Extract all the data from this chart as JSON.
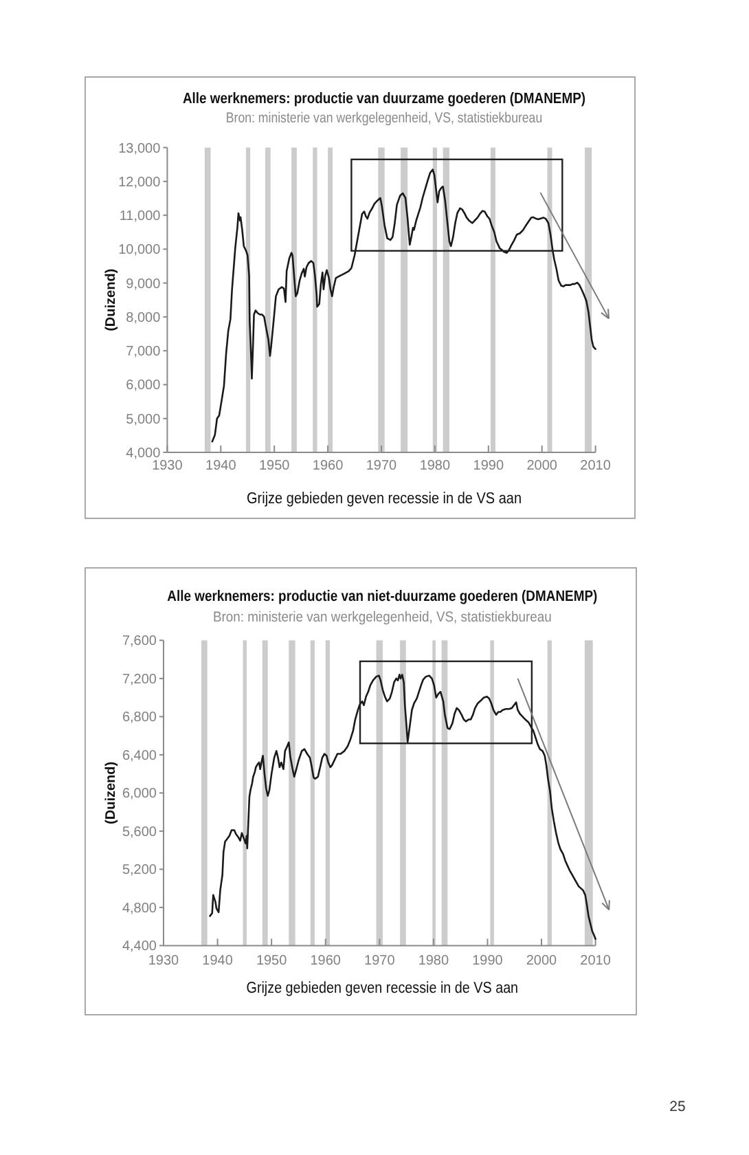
{
  "chart_data": [
    {
      "type": "line",
      "title": "Alle werknemers: productie van duurzame goederen (DMANEMP)",
      "subtitle": "Bron: ministerie van werkgelegenheid, VS, statistiekbureau",
      "xlabel": "Grijze gebieden geven recessie in de VS aan",
      "ylabel": "(Duizend)",
      "xlim": [
        1930,
        2010
      ],
      "xticks": [
        1930,
        1940,
        1950,
        1960,
        1970,
        1980,
        1990,
        2000,
        2010
      ],
      "ylim": [
        4000,
        13000
      ],
      "yticks": [
        {
          "value": 4000,
          "label": "4,000"
        },
        {
          "value": 5000,
          "label": "5,000"
        },
        {
          "value": 6000,
          "label": "6,000"
        },
        {
          "value": 7000,
          "label": "7,000"
        },
        {
          "value": 8000,
          "label": "8,000"
        },
        {
          "value": 9000,
          "label": "9,000"
        },
        {
          "value": 10000,
          "label": "10,000"
        },
        {
          "value": 11000,
          "label": "11,000"
        },
        {
          "value": 12000,
          "label": "12,000"
        },
        {
          "value": 13000,
          "label": "13,000"
        }
      ],
      "bands": [
        {
          "axis": "x",
          "from": 1937.0,
          "to": 1938.1,
          "color": "#cccccc"
        },
        {
          "axis": "x",
          "from": 1944.7,
          "to": 1945.5,
          "color": "#cccccc"
        },
        {
          "axis": "x",
          "from": 1948.3,
          "to": 1949.3,
          "color": "#cccccc"
        },
        {
          "axis": "x",
          "from": 1953.2,
          "to": 1954.2,
          "color": "#cccccc"
        },
        {
          "axis": "x",
          "from": 1957.2,
          "to": 1958.0,
          "color": "#cccccc"
        },
        {
          "axis": "x",
          "from": 1960.0,
          "to": 1960.9,
          "color": "#cccccc"
        },
        {
          "axis": "x",
          "from": 1969.4,
          "to": 1970.6,
          "color": "#cccccc"
        },
        {
          "axis": "x",
          "from": 1973.6,
          "to": 1974.9,
          "color": "#cccccc"
        },
        {
          "axis": "x",
          "from": 1979.6,
          "to": 1980.4,
          "color": "#cccccc"
        },
        {
          "axis": "x",
          "from": 1981.5,
          "to": 1982.7,
          "color": "#cccccc"
        },
        {
          "axis": "x",
          "from": 1990.4,
          "to": 1991.3,
          "color": "#cccccc"
        },
        {
          "axis": "x",
          "from": 2001.0,
          "to": 2001.9,
          "color": "#cccccc"
        },
        {
          "axis": "x",
          "from": 2008.0,
          "to": 2009.3,
          "color": "#cccccc"
        }
      ],
      "x": [
        1938.4,
        1938.9,
        1939.3,
        1939.7,
        1940.2,
        1940.6,
        1941.0,
        1941.4,
        1941.8,
        1942.1,
        1942.5,
        1942.7,
        1943.1,
        1943.3,
        1943.6,
        1943.7,
        1944.0,
        1944.3,
        1944.7,
        1945.0,
        1945.3,
        1945.4,
        1945.6,
        1945.8,
        1946.0,
        1946.2,
        1946.5,
        1946.9,
        1947.3,
        1947.7,
        1948.1,
        1948.4,
        1948.9,
        1949.2,
        1949.4,
        1949.9,
        1950.3,
        1950.8,
        1951.4,
        1951.8,
        1952.1,
        1952.3,
        1952.8,
        1953.2,
        1953.4,
        1953.7,
        1954.0,
        1954.3,
        1954.7,
        1955.1,
        1955.5,
        1955.7,
        1956.0,
        1956.4,
        1956.9,
        1957.3,
        1957.6,
        1957.9,
        1958.0,
        1958.4,
        1958.7,
        1959.0,
        1959.2,
        1959.5,
        1959.8,
        1960.2,
        1960.5,
        1960.8,
        1961.1,
        1961.5,
        1962.2,
        1963.1,
        1963.9,
        1964.4,
        1965.0,
        1965.7,
        1966.4,
        1966.8,
        1967.1,
        1967.4,
        1967.8,
        1968.3,
        1968.7,
        1969.3,
        1969.8,
        1970.1,
        1970.6,
        1971.1,
        1971.7,
        1972.1,
        1972.5,
        1972.9,
        1973.5,
        1974.0,
        1974.5,
        1974.9,
        1975.3,
        1975.6,
        1975.9,
        1976.1,
        1976.5,
        1976.9,
        1977.3,
        1977.7,
        1978.2,
        1978.7,
        1979.1,
        1979.6,
        1979.9,
        1980.2,
        1980.5,
        1980.8,
        1981.2,
        1981.5,
        1981.9,
        1982.3,
        1982.7,
        1983.0,
        1983.4,
        1983.8,
        1984.2,
        1984.7,
        1985.1,
        1985.5,
        1985.9,
        1986.4,
        1987.0,
        1987.4,
        1988.0,
        1988.4,
        1988.9,
        1989.3,
        1989.8,
        1990.2,
        1990.6,
        1991.1,
        1991.5,
        1992.1,
        1992.5,
        1992.9,
        1993.4,
        1993.8,
        1994.2,
        1994.8,
        1995.3,
        1995.9,
        1996.5,
        1997.0,
        1997.6,
        1998.0,
        1998.4,
        1998.9,
        1999.3,
        1999.7,
        2000.3,
        2000.7,
        2001.2,
        2001.6,
        2002.0,
        2002.3,
        2002.7,
        2003.1,
        2003.6,
        2004.0,
        2004.4,
        2004.8,
        2005.3,
        2005.7,
        2006.1,
        2006.6,
        2007.0,
        2007.4,
        2007.8,
        2008.3,
        2008.7,
        2009.0,
        2009.3,
        2009.6,
        2010.0
      ],
      "series": [
        {
          "color": "#1a1a1a",
          "values": [
            4320,
            4510,
            5000,
            5090,
            5570,
            5970,
            6920,
            7590,
            7930,
            8810,
            9620,
            10030,
            10630,
            11060,
            10840,
            10940,
            10570,
            10090,
            9960,
            9820,
            9210,
            7860,
            7120,
            6180,
            7050,
            8070,
            8190,
            8110,
            8070,
            8070,
            8000,
            7730,
            7320,
            6850,
            7120,
            7930,
            8610,
            8810,
            8880,
            8840,
            8440,
            9350,
            9730,
            9890,
            9820,
            9210,
            8610,
            8700,
            9050,
            9280,
            9420,
            9190,
            9460,
            9590,
            9650,
            9590,
            9210,
            8670,
            8300,
            8380,
            8970,
            9310,
            8810,
            9210,
            9380,
            9150,
            8810,
            8610,
            8880,
            9150,
            9210,
            9280,
            9350,
            9440,
            9820,
            10430,
            11040,
            11110,
            10970,
            10900,
            11080,
            11210,
            11340,
            11440,
            11510,
            11270,
            10700,
            10320,
            10270,
            10360,
            10770,
            11310,
            11580,
            11650,
            11510,
            10900,
            10130,
            10360,
            10630,
            10570,
            10840,
            11040,
            11240,
            11510,
            11780,
            12050,
            12250,
            12350,
            12190,
            11780,
            11380,
            11710,
            11810,
            11850,
            11440,
            10840,
            10230,
            10090,
            10360,
            10770,
            11070,
            11210,
            11170,
            11070,
            10940,
            10840,
            10770,
            10840,
            10940,
            11040,
            11130,
            11110,
            10970,
            10900,
            10700,
            10500,
            10230,
            10030,
            9980,
            9920,
            9890,
            9960,
            10090,
            10260,
            10430,
            10470,
            10570,
            10700,
            10840,
            10930,
            10940,
            10900,
            10880,
            10900,
            10930,
            10900,
            10770,
            10430,
            9960,
            9690,
            9420,
            9080,
            8920,
            8900,
            8940,
            8940,
            8940,
            8970,
            8970,
            9010,
            8940,
            8810,
            8670,
            8470,
            8130,
            7730,
            7320,
            7120,
            7050
          ]
        }
      ]
    },
    {
      "type": "line",
      "title": "Alle werknemers: productie van niet-duurzame goederen (DMANEMP)",
      "subtitle": "Bron: ministerie van werkgelegenheid, VS, statistiekbureau",
      "xlabel": "Grijze gebieden geven recessie in de VS aan",
      "ylabel": "(Duizend)",
      "xlim": [
        1930,
        2010
      ],
      "xticks": [
        1930,
        1940,
        1950,
        1960,
        1970,
        1980,
        1990,
        2000,
        2010
      ],
      "ylim": [
        4400,
        7600
      ],
      "yticks": [
        {
          "value": 4400,
          "label": "4,400"
        },
        {
          "value": 4800,
          "label": "4,800"
        },
        {
          "value": 5200,
          "label": "5,200"
        },
        {
          "value": 5600,
          "label": "5,600"
        },
        {
          "value": 6000,
          "label": "6,000"
        },
        {
          "value": 6400,
          "label": "6,400"
        },
        {
          "value": 6800,
          "label": "6,800"
        },
        {
          "value": 7200,
          "label": "7,200"
        },
        {
          "value": 7600,
          "label": "7,600"
        }
      ],
      "bands": [
        {
          "axis": "x",
          "from": 1937.0,
          "to": 1938.1,
          "color": "#cccccc"
        },
        {
          "axis": "x",
          "from": 1944.7,
          "to": 1945.4,
          "color": "#cccccc"
        },
        {
          "axis": "x",
          "from": 1948.3,
          "to": 1949.3,
          "color": "#cccccc"
        },
        {
          "axis": "x",
          "from": 1953.2,
          "to": 1954.4,
          "color": "#cccccc"
        },
        {
          "axis": "x",
          "from": 1957.2,
          "to": 1958.0,
          "color": "#cccccc"
        },
        {
          "axis": "x",
          "from": 1960.0,
          "to": 1960.8,
          "color": "#cccccc"
        },
        {
          "axis": "x",
          "from": 1969.4,
          "to": 1970.6,
          "color": "#cccccc"
        },
        {
          "axis": "x",
          "from": 1973.8,
          "to": 1974.9,
          "color": "#cccccc"
        },
        {
          "axis": "x",
          "from": 1979.8,
          "to": 1980.4,
          "color": "#cccccc"
        },
        {
          "axis": "x",
          "from": 1981.5,
          "to": 1982.6,
          "color": "#cccccc"
        },
        {
          "axis": "x",
          "from": 1990.5,
          "to": 1991.2,
          "color": "#cccccc"
        },
        {
          "axis": "x",
          "from": 2001.1,
          "to": 2001.9,
          "color": "#cccccc"
        },
        {
          "axis": "x",
          "from": 2008.0,
          "to": 2009.5,
          "color": "#cccccc"
        }
      ],
      "x": [
        1938.6,
        1939.0,
        1939.2,
        1939.6,
        1939.8,
        1940.2,
        1940.5,
        1940.9,
        1941.1,
        1941.4,
        1941.8,
        1942.2,
        1942.6,
        1943.1,
        1943.4,
        1943.8,
        1944.2,
        1944.5,
        1944.9,
        1945.2,
        1945.4,
        1945.5,
        1945.9,
        1946.1,
        1946.4,
        1946.6,
        1946.9,
        1947.1,
        1947.4,
        1947.7,
        1947.9,
        1948.2,
        1948.4,
        1948.7,
        1949.0,
        1949.3,
        1949.6,
        1950.0,
        1950.5,
        1950.9,
        1951.2,
        1951.5,
        1951.8,
        1952.2,
        1952.5,
        1952.9,
        1953.2,
        1953.5,
        1953.9,
        1954.2,
        1954.6,
        1955.0,
        1955.6,
        1956.1,
        1956.6,
        1957.1,
        1957.4,
        1957.8,
        1958.1,
        1958.6,
        1959.0,
        1959.4,
        1959.8,
        1960.2,
        1960.5,
        1960.9,
        1961.2,
        1961.7,
        1962.2,
        1962.8,
        1963.5,
        1964.1,
        1964.6,
        1965.1,
        1965.5,
        1966.0,
        1966.3,
        1966.5,
        1966.8,
        1967.1,
        1967.5,
        1967.9,
        1968.3,
        1968.8,
        1969.4,
        1969.9,
        1970.2,
        1970.6,
        1971.0,
        1971.4,
        1971.9,
        1972.3,
        1972.7,
        1973.1,
        1973.4,
        1973.7,
        1973.9,
        1974.2,
        1974.5,
        1974.7,
        1975.0,
        1975.2,
        1975.6,
        1976.0,
        1976.4,
        1976.9,
        1977.3,
        1977.7,
        1978.1,
        1978.6,
        1979.2,
        1979.7,
        1980.1,
        1980.5,
        1980.9,
        1981.3,
        1981.8,
        1982.1,
        1982.6,
        1983.0,
        1983.5,
        1983.9,
        1984.3,
        1984.7,
        1985.2,
        1985.6,
        1986.0,
        1986.5,
        1986.9,
        1987.3,
        1987.7,
        1988.2,
        1988.8,
        1989.3,
        1989.9,
        1990.3,
        1990.7,
        1991.1,
        1991.6,
        1992.0,
        1992.4,
        1992.8,
        1993.4,
        1994.0,
        1994.5,
        1994.9,
        1995.3,
        1995.6,
        1996.0,
        1996.5,
        1997.0,
        1997.6,
        1998.0,
        1998.5,
        1998.9,
        1999.3,
        1999.7,
        2000.2,
        2000.6,
        2000.9,
        2001.2,
        2001.6,
        2001.9,
        2002.3,
        2002.7,
        2003.1,
        2003.5,
        2004.0,
        2004.4,
        2004.8,
        2005.2,
        2005.7,
        2006.1,
        2006.5,
        2006.9,
        2007.3,
        2007.7,
        2008.1,
        2008.4,
        2008.7,
        2009.1,
        2009.4,
        2009.8,
        2010.0
      ],
      "series": [
        {
          "color": "#1a1a1a",
          "values": [
            4710,
            4740,
            4930,
            4860,
            4790,
            4750,
            4980,
            5140,
            5380,
            5490,
            5520,
            5550,
            5610,
            5610,
            5570,
            5540,
            5500,
            5580,
            5520,
            5470,
            5550,
            5420,
            5960,
            6030,
            6100,
            6170,
            6220,
            6270,
            6300,
            6320,
            6250,
            6340,
            6390,
            6200,
            6050,
            5970,
            6030,
            6200,
            6370,
            6440,
            6370,
            6270,
            6320,
            6250,
            6440,
            6490,
            6530,
            6370,
            6250,
            6170,
            6250,
            6340,
            6440,
            6460,
            6410,
            6370,
            6290,
            6160,
            6150,
            6170,
            6270,
            6370,
            6410,
            6390,
            6320,
            6270,
            6290,
            6350,
            6410,
            6410,
            6440,
            6490,
            6560,
            6650,
            6770,
            6870,
            6920,
            6940,
            6960,
            6920,
            7010,
            7060,
            7130,
            7180,
            7220,
            7230,
            7180,
            7080,
            7010,
            6960,
            6990,
            7060,
            7160,
            7200,
            7180,
            7240,
            7200,
            7240,
            7160,
            6920,
            6700,
            6530,
            6700,
            6870,
            6940,
            6990,
            7060,
            7130,
            7190,
            7220,
            7230,
            7200,
            7130,
            7000,
            7040,
            7060,
            6960,
            6820,
            6680,
            6670,
            6730,
            6830,
            6890,
            6870,
            6820,
            6770,
            6750,
            6770,
            6770,
            6820,
            6890,
            6940,
            6970,
            7000,
            7010,
            6990,
            6940,
            6870,
            6820,
            6850,
            6850,
            6870,
            6880,
            6880,
            6890,
            6920,
            6950,
            6870,
            6830,
            6800,
            6770,
            6740,
            6700,
            6650,
            6580,
            6510,
            6460,
            6440,
            6390,
            6290,
            6150,
            6010,
            5840,
            5700,
            5580,
            5480,
            5410,
            5360,
            5290,
            5240,
            5190,
            5140,
            5100,
            5060,
            5020,
            5000,
            4980,
            4930,
            4830,
            4710,
            4620,
            4550,
            4500,
            4470
          ]
        }
      ],
      "annotations": [
        "25"
      ]
    }
  ]
}
